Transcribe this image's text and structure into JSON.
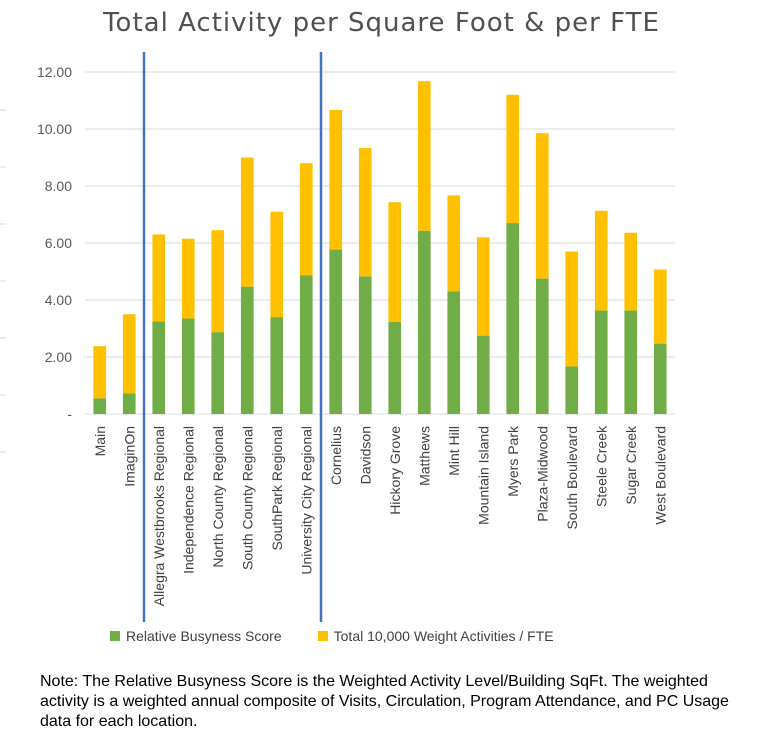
{
  "chart_data": {
    "type": "bar",
    "stacked": true,
    "title": "Total Activity per Square Foot & per FTE",
    "xlabel": "",
    "ylabel": "",
    "ylim": [
      0,
      12
    ],
    "y_ticks": [
      "-",
      "2.00",
      "4.00",
      "6.00",
      "8.00",
      "10.00",
      "12.00"
    ],
    "grid": true,
    "legend_position": "bottom",
    "categories": [
      "Main",
      "ImaginOn",
      "Allegra Westbrooks Regional",
      "Independence Regional",
      "North County Regional",
      "South County Regional",
      "SouthPark Regional",
      "University City Regional",
      "Cornelius",
      "Davidson",
      "Hickory Grove",
      "Matthews",
      "Mint Hill",
      "Mountain Island",
      "Myers Park",
      "Plaza-Midwood",
      "South Boulevard",
      "Steele Creek",
      "Sugar Creek",
      "West Boulevard"
    ],
    "series": [
      {
        "name": "Relative Busyness Score",
        "color": "#70ad47",
        "values": [
          0.55,
          0.72,
          3.25,
          3.35,
          2.87,
          4.47,
          3.4,
          4.87,
          5.77,
          4.83,
          3.23,
          6.43,
          4.3,
          2.75,
          6.7,
          4.75,
          1.67,
          3.63,
          3.63,
          2.47
        ]
      },
      {
        "name": "Total 10,000 Weight Activities / FTE",
        "color": "#ffc000",
        "values": [
          1.83,
          2.78,
          3.05,
          2.8,
          3.58,
          4.53,
          3.7,
          3.93,
          4.9,
          4.5,
          4.2,
          5.25,
          3.37,
          3.45,
          4.5,
          5.1,
          4.03,
          3.5,
          2.73,
          2.6
        ]
      }
    ],
    "group_separators_after": [
      "ImaginOn",
      "University City Regional"
    ],
    "separator_color": "#4472c4"
  },
  "note": "Note: The Relative Busyness Score is the Weighted Activity Level/Building SqFt.   The weighted activity is a weighted annual composite of Visits, Circulation, Program Attendance, and PC Usage data for each location."
}
